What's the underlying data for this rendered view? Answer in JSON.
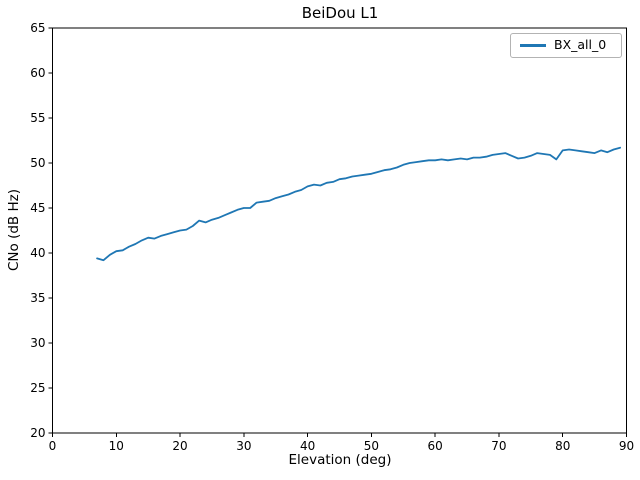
{
  "figure": {
    "title": "BeiDou L1"
  },
  "chart_data": {
    "type": "line",
    "title": "BeiDou L1",
    "xlabel": "Elevation (deg)",
    "ylabel": "CNo (dB Hz)",
    "xlim": [
      0,
      90
    ],
    "ylim": [
      20,
      65
    ],
    "xticks": [
      0,
      10,
      20,
      30,
      40,
      50,
      60,
      70,
      80,
      90
    ],
    "yticks": [
      20,
      25,
      30,
      35,
      40,
      45,
      50,
      55,
      60,
      65
    ],
    "grid": false,
    "line_color": "#1f77b4",
    "legend": {
      "position": "upper right",
      "entries": [
        {
          "label": "BX_all_0",
          "color": "#1f77b4"
        }
      ]
    },
    "series": [
      {
        "name": "BX_all_0",
        "color": "#1f77b4",
        "x": [
          7,
          8,
          9,
          10,
          11,
          12,
          13,
          14,
          15,
          16,
          17,
          18,
          19,
          20,
          21,
          22,
          23,
          24,
          25,
          26,
          27,
          28,
          29,
          30,
          31,
          32,
          33,
          34,
          35,
          36,
          37,
          38,
          39,
          40,
          41,
          42,
          43,
          44,
          45,
          46,
          47,
          48,
          49,
          50,
          51,
          52,
          53,
          54,
          55,
          56,
          57,
          58,
          59,
          60,
          61,
          62,
          63,
          64,
          65,
          66,
          67,
          68,
          69,
          70,
          71,
          72,
          73,
          74,
          75,
          76,
          77,
          78,
          79,
          80,
          81,
          82,
          83,
          84,
          85,
          86,
          87,
          88,
          89
        ],
        "y": [
          39.4,
          39.2,
          39.8,
          40.2,
          40.3,
          40.7,
          41.0,
          41.4,
          41.7,
          41.6,
          41.9,
          42.1,
          42.3,
          42.5,
          42.6,
          43.0,
          43.6,
          43.4,
          43.7,
          43.9,
          44.2,
          44.5,
          44.8,
          45.0,
          45.0,
          45.6,
          45.7,
          45.8,
          46.1,
          46.3,
          46.5,
          46.8,
          47.0,
          47.4,
          47.6,
          47.5,
          47.8,
          47.9,
          48.2,
          48.3,
          48.5,
          48.6,
          48.7,
          48.8,
          49.0,
          49.2,
          49.3,
          49.5,
          49.8,
          50.0,
          50.1,
          50.2,
          50.3,
          50.3,
          50.4,
          50.3,
          50.4,
          50.5,
          50.4,
          50.6,
          50.6,
          50.7,
          50.9,
          51.0,
          51.1,
          50.8,
          50.5,
          50.6,
          50.8,
          51.1,
          51.0,
          50.9,
          50.4,
          51.4,
          51.5,
          51.4,
          51.3,
          51.2,
          51.1,
          51.4,
          51.2,
          51.5,
          51.7
        ]
      }
    ]
  }
}
